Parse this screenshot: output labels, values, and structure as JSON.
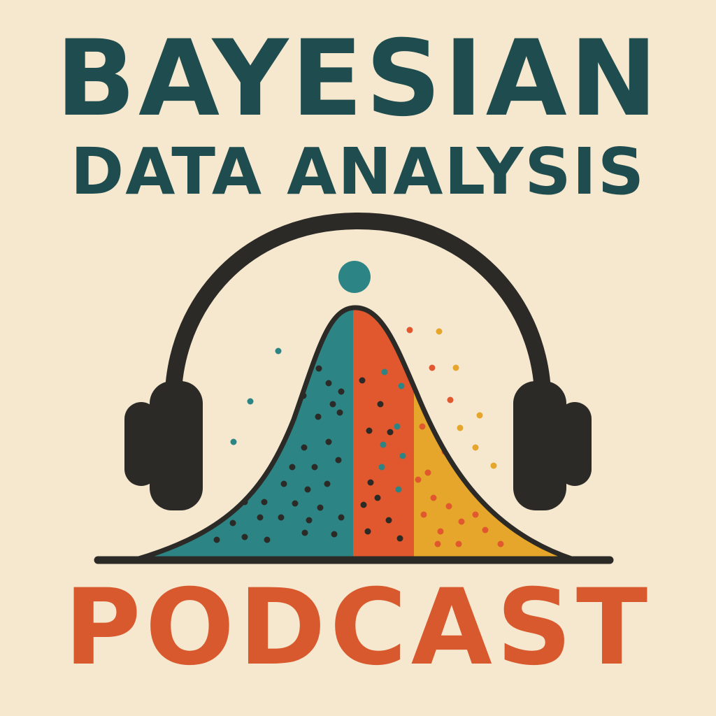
{
  "title": {
    "line1": "BAYESIAN",
    "line2": "DATA ANALYSIS"
  },
  "podcast_label": "PODCAST",
  "colors": {
    "background": "#f6e8cf",
    "title": "#1f4d4f",
    "podcast": "#d9592f",
    "outline": "#2b2a26",
    "teal": "#2c8584",
    "orange": "#e1582e",
    "yellow": "#e5a62b",
    "dot_dark": "#2b2a26",
    "dot_orange": "#e1582e",
    "dot_gold": "#e5a62b"
  },
  "icons": [
    "headphones-icon",
    "bell-curve-icon"
  ]
}
